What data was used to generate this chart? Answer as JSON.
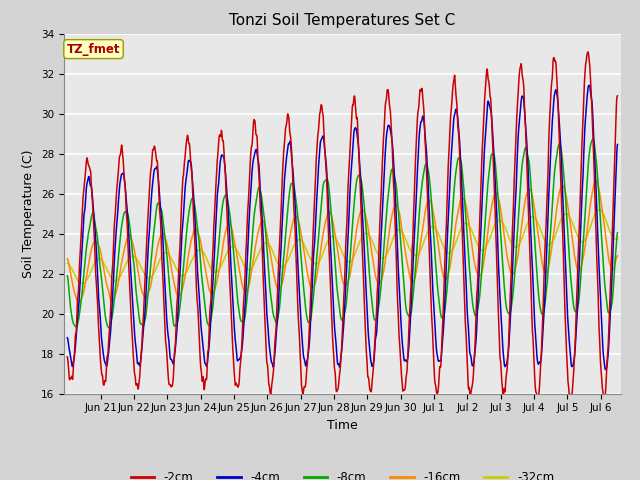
{
  "title": "Tonzi Soil Temperatures Set C",
  "xlabel": "Time",
  "ylabel": "Soil Temperature (C)",
  "ylim": [
    16,
    34
  ],
  "annotation": "TZ_fmet",
  "fig_facecolor": "#d4d4d4",
  "ax_facecolor": "#e8e8e8",
  "grid_color": "#ffffff",
  "series_colors": [
    "#cc0000",
    "#0000cc",
    "#00aa00",
    "#ff8800",
    "#cccc00"
  ],
  "series_labels": [
    "-2cm",
    "-4cm",
    "-8cm",
    "-16cm",
    "-32cm"
  ],
  "tick_fontsize": 7.5,
  "label_fontsize": 9,
  "title_fontsize": 11,
  "lw": 1.1
}
